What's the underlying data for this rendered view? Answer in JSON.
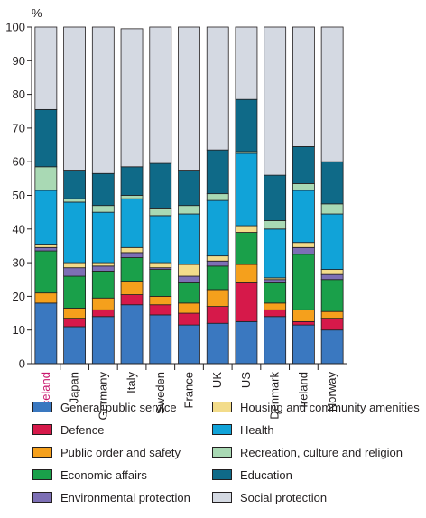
{
  "chart_data": {
    "type": "bar",
    "stacked": true,
    "ylabel": "%",
    "ylim": [
      0,
      100
    ],
    "yticks": [
      0,
      10,
      20,
      30,
      40,
      50,
      60,
      70,
      80,
      90,
      100
    ],
    "grid": false,
    "legend_position": "bottom",
    "highlight_category": "Iceland",
    "highlight_color": "#c9176e",
    "categories": [
      "Iceland",
      "Japan",
      "Germany",
      "Italy",
      "Sweden",
      "France",
      "UK",
      "US",
      "Denmark",
      "Ireland",
      "Norway"
    ],
    "series": [
      {
        "name": "General public service",
        "color": "#3a78c0",
        "values": [
          18.0,
          11.0,
          14.0,
          17.5,
          14.5,
          11.5,
          12.0,
          12.5,
          14.0,
          11.5,
          10.0
        ]
      },
      {
        "name": "Defence",
        "color": "#d6194a",
        "values": [
          0.0,
          2.5,
          2.0,
          3.0,
          3.0,
          3.5,
          5.0,
          11.5,
          2.0,
          1.0,
          3.5
        ]
      },
      {
        "name": "Public order and safety",
        "color": "#f5a01c",
        "values": [
          3.0,
          3.0,
          3.5,
          4.0,
          2.5,
          3.0,
          5.0,
          5.5,
          2.0,
          3.5,
          2.0
        ]
      },
      {
        "name": "Economic affairs",
        "color": "#1aa04a",
        "values": [
          12.5,
          9.5,
          8.0,
          7.0,
          8.0,
          6.0,
          7.0,
          9.5,
          6.0,
          16.5,
          9.5
        ]
      },
      {
        "name": "Environmental protection",
        "color": "#7d6fb5",
        "values": [
          1.0,
          2.5,
          1.5,
          1.5,
          0.5,
          2.0,
          1.5,
          0.0,
          1.0,
          2.0,
          1.5
        ]
      },
      {
        "name": "Housing and community amenities",
        "color": "#f3dc8a",
        "values": [
          1.0,
          1.5,
          1.0,
          1.5,
          1.5,
          3.5,
          1.5,
          2.0,
          0.5,
          1.5,
          1.5
        ]
      },
      {
        "name": "Health",
        "color": "#11a3d8",
        "values": [
          16.0,
          18.0,
          15.0,
          14.5,
          14.0,
          15.0,
          16.5,
          21.5,
          14.5,
          15.5,
          16.5
        ]
      },
      {
        "name": "Recreation, culture and religion",
        "color": "#a9d9b4",
        "values": [
          7.0,
          1.0,
          2.0,
          1.0,
          2.0,
          2.5,
          2.0,
          0.5,
          2.5,
          2.0,
          3.0
        ]
      },
      {
        "name": "Education",
        "color": "#0f6a88",
        "values": [
          17.0,
          8.5,
          9.5,
          8.5,
          13.5,
          10.5,
          13.0,
          15.5,
          13.5,
          11.0,
          12.5
        ]
      },
      {
        "name": "Social protection",
        "color": "#d4d9e2",
        "values": [
          24.5,
          42.5,
          43.5,
          41.0,
          40.5,
          42.5,
          36.5,
          21.5,
          44.0,
          35.5,
          40.0
        ]
      }
    ]
  }
}
